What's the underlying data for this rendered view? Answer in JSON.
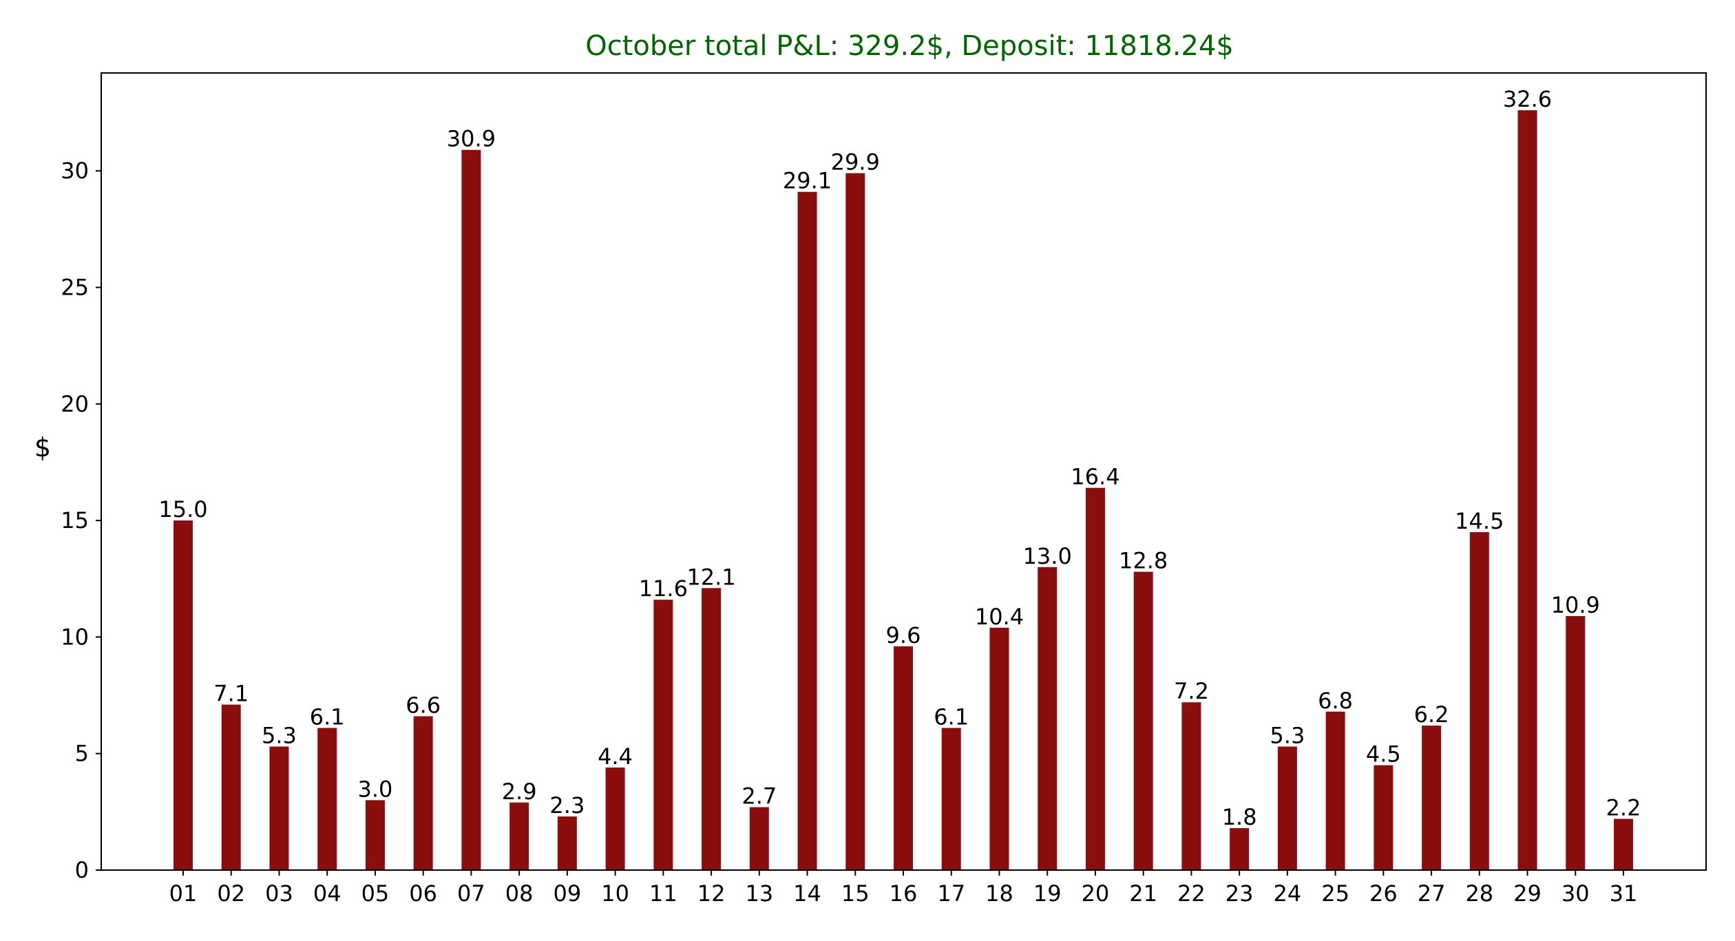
{
  "chart_data": {
    "type": "bar",
    "title": "October total P&L: 329.2$, Deposit: 11818.24$",
    "xlabel": "",
    "ylabel": "$",
    "ylim": [
      0,
      34.2
    ],
    "yticks": [
      0,
      5,
      10,
      15,
      20,
      25,
      30
    ],
    "grid": false,
    "categories": [
      "01",
      "02",
      "03",
      "04",
      "05",
      "06",
      "07",
      "08",
      "09",
      "10",
      "11",
      "12",
      "13",
      "14",
      "15",
      "16",
      "17",
      "18",
      "19",
      "20",
      "21",
      "22",
      "23",
      "24",
      "25",
      "26",
      "27",
      "28",
      "29",
      "30",
      "31"
    ],
    "values": [
      15.0,
      7.1,
      5.3,
      6.1,
      3.0,
      6.6,
      30.9,
      2.9,
      2.3,
      4.4,
      11.6,
      12.1,
      2.7,
      29.1,
      29.9,
      9.6,
      6.1,
      10.4,
      13.0,
      16.4,
      12.8,
      7.2,
      1.8,
      5.3,
      6.8,
      4.5,
      6.2,
      14.5,
      32.6,
      10.9,
      2.2
    ],
    "value_labels": [
      "15.0",
      "7.1",
      "5.3",
      "6.1",
      "3.0",
      "6.6",
      "30.9",
      "2.9",
      "2.3",
      "4.4",
      "11.6",
      "12.1",
      "2.7",
      "29.1",
      "29.9",
      "9.6",
      "6.1",
      "10.4",
      "13.0",
      "16.4",
      "12.8",
      "7.2",
      "1.8",
      "5.3",
      "6.8",
      "4.5",
      "6.2",
      "14.5",
      "32.6",
      "10.9",
      "2.2"
    ]
  },
  "colors": {
    "bar": "#8b0e0e",
    "title": "#006400",
    "axis": "#000000"
  }
}
